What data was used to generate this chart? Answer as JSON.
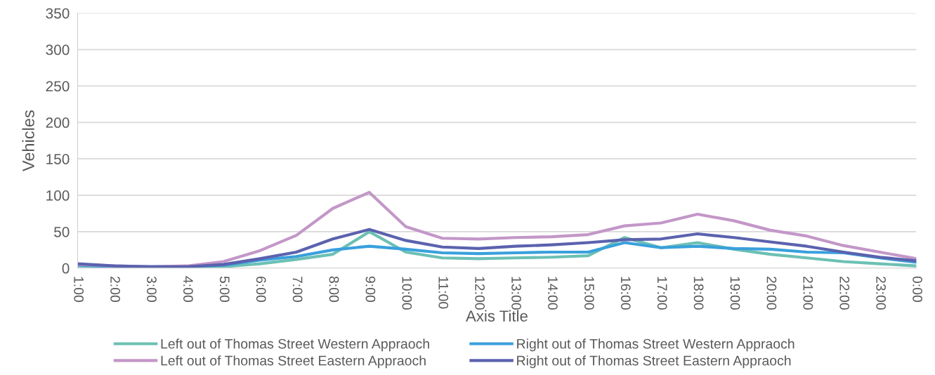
{
  "chart_data": {
    "type": "line",
    "xlabel": "Axis Title",
    "ylabel": "Vehicles",
    "categories": [
      "1:00",
      "2:00",
      "3:00",
      "4:00",
      "5:00",
      "6:00",
      "7:00",
      "8:00",
      "9:00",
      "10:00",
      "11:00",
      "12:00",
      "13:00",
      "14:00",
      "15:00",
      "16:00",
      "17:00",
      "18:00",
      "19:00",
      "20:00",
      "21:00",
      "22:00",
      "23:00",
      "0:00"
    ],
    "series": [
      {
        "name": "Left out of Thomas Street Western Appraoch",
        "color": "#6cc0b4",
        "values": [
          3,
          1,
          1,
          1,
          2,
          6,
          12,
          19,
          50,
          22,
          14,
          13,
          14,
          15,
          17,
          42,
          28,
          35,
          26,
          19,
          14,
          9,
          6,
          3
        ]
      },
      {
        "name": "Right out of Thomas Street Western Appraoch",
        "color": "#3aa0dc",
        "values": [
          4,
          2,
          2,
          2,
          4,
          11,
          16,
          25,
          30,
          26,
          21,
          20,
          21,
          22,
          22,
          35,
          28,
          30,
          27,
          26,
          22,
          21,
          14,
          8
        ]
      },
      {
        "name": "Left out of Thomas Street Eastern Appraoch",
        "color": "#c397c8",
        "values": [
          5,
          3,
          2,
          3,
          9,
          24,
          45,
          82,
          104,
          57,
          41,
          40,
          42,
          43,
          46,
          58,
          62,
          74,
          65,
          52,
          44,
          31,
          22,
          13
        ]
      },
      {
        "name": "Right out of Thomas Street Eastern Appraoch",
        "color": "#5b62ae",
        "values": [
          6,
          3,
          2,
          2,
          5,
          13,
          22,
          40,
          53,
          38,
          29,
          27,
          30,
          32,
          35,
          39,
          40,
          47,
          42,
          36,
          30,
          22,
          15,
          10
        ]
      }
    ],
    "ylim": [
      0,
      350
    ],
    "yticks": [
      0,
      50,
      100,
      150,
      200,
      250,
      300,
      350
    ],
    "grid": "y",
    "legend": "bottom",
    "line_style": "solid",
    "marker": "none"
  }
}
